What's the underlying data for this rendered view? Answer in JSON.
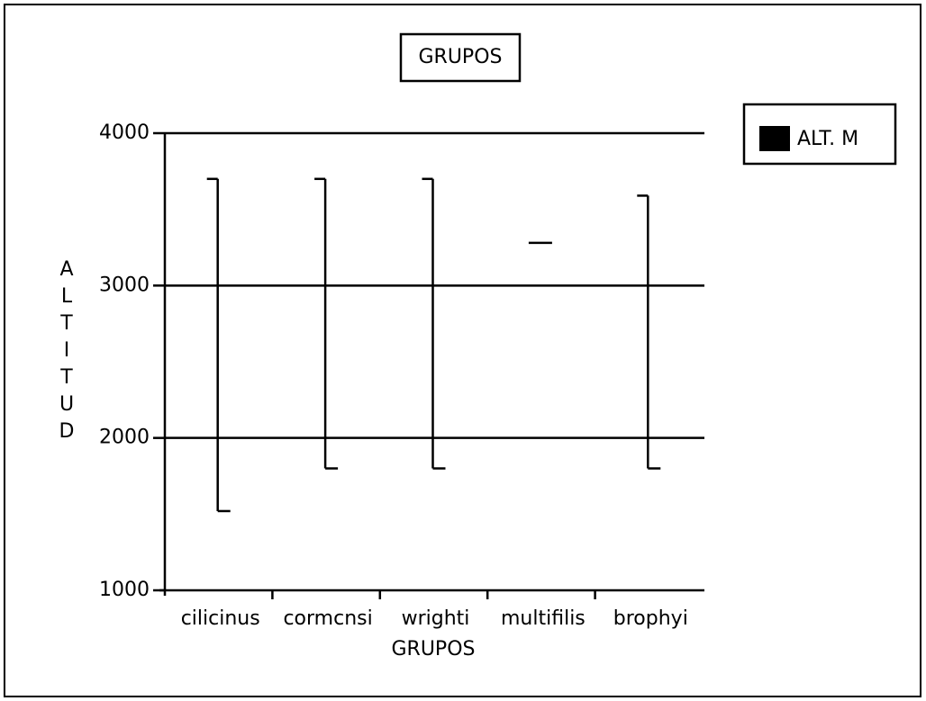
{
  "chart_data": {
    "type": "range",
    "title": "GRUPOS",
    "xlabel": "GRUPOS",
    "ylabel": "ALTITUD",
    "categories": [
      "cilicinus",
      "cormcnsi",
      "wrighti",
      "multifilis",
      "brophyi"
    ],
    "series": [
      {
        "name": "ALT. M",
        "color": "#000000",
        "high": [
          3700,
          3700,
          3700,
          3280,
          3590
        ],
        "low": [
          1520,
          1800,
          1800,
          3280,
          1800
        ]
      }
    ],
    "ylim": [
      1000,
      4000
    ],
    "yticks": [
      1000,
      2000,
      3000,
      4000
    ],
    "grid": true,
    "legend": "top-right"
  }
}
